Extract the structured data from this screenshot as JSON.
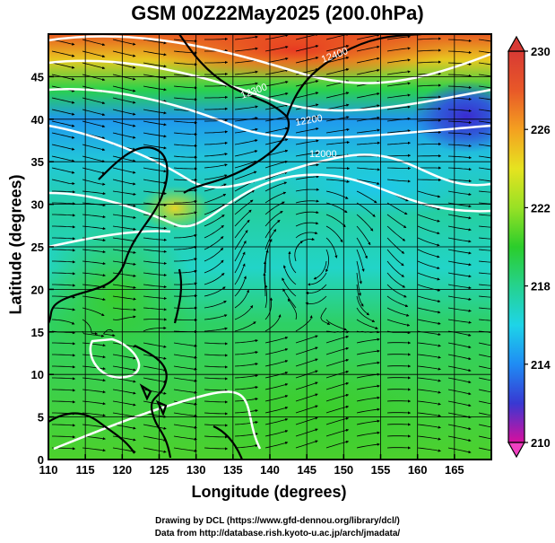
{
  "title": "GSM 00Z22May2025 (200.0hPa)",
  "x_axis": {
    "label": "Longitude (degrees)",
    "ticks": [
      "110",
      "115",
      "120",
      "125",
      "130",
      "135",
      "140",
      "145",
      "150",
      "155",
      "160",
      "165"
    ],
    "range": [
      110,
      170
    ]
  },
  "y_axis": {
    "label": "Latitude  (degrees)",
    "ticks": [
      "0",
      "5",
      "10",
      "15",
      "20",
      "25",
      "30",
      "35",
      "40",
      "45"
    ],
    "range": [
      0,
      50
    ]
  },
  "colorbar": {
    "ticks": [
      "210",
      "214",
      "218",
      "222",
      "226",
      "230"
    ],
    "range": [
      210,
      230
    ],
    "colors": [
      "#d80f9e",
      "#3838d2",
      "#1f8cf4",
      "#1ed4e8",
      "#25d28e",
      "#2bcd2b",
      "#98e125",
      "#e6e320",
      "#f4a020",
      "#e85828",
      "#d83a34"
    ]
  },
  "contour_labels": [
    "12400",
    "12300",
    "12200",
    "12000"
  ],
  "credits": [
    "Drawing by DCL (https://www.gfd-dennou.org/library/dcl/)",
    "Data from http://database.rish.kyoto-u.ac.jp/arch/jmadata/"
  ]
}
